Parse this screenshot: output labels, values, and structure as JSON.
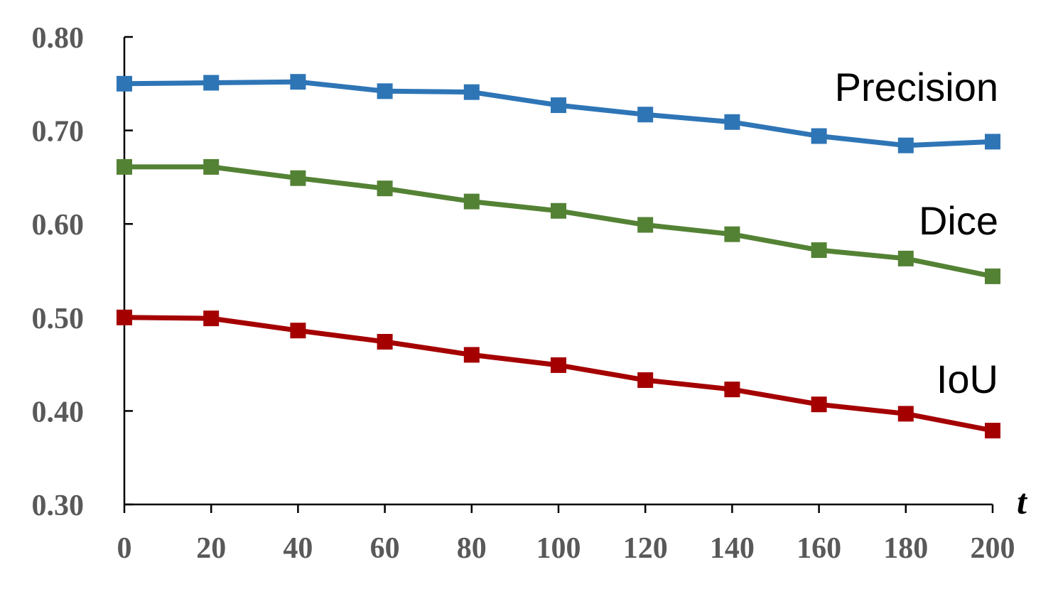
{
  "chart_data": {
    "type": "line",
    "xlabel": "t",
    "ylabel": "",
    "x": [
      0,
      20,
      40,
      60,
      80,
      100,
      120,
      140,
      160,
      180,
      200
    ],
    "x_tick_labels": [
      "0",
      "20",
      "40",
      "60",
      "80",
      "100",
      "120",
      "140",
      "160",
      "180",
      "200"
    ],
    "y_tick_labels": [
      "0.30",
      "0.40",
      "0.50",
      "0.60",
      "0.70",
      "0.80"
    ],
    "ylim": [
      0.3,
      0.8
    ],
    "xlim": [
      0,
      200
    ],
    "grid": false,
    "legend": "inline labels at right end of each series",
    "series": [
      {
        "name": "Precision",
        "color": "#2E75B6",
        "marker": "square",
        "values": [
          0.75,
          0.751,
          0.752,
          0.742,
          0.741,
          0.727,
          0.717,
          0.709,
          0.694,
          0.684,
          0.688
        ]
      },
      {
        "name": "Dice",
        "color": "#548235",
        "marker": "square",
        "values": [
          0.661,
          0.661,
          0.649,
          0.638,
          0.624,
          0.614,
          0.599,
          0.589,
          0.572,
          0.563,
          0.544
        ]
      },
      {
        "name": "IoU",
        "color": "#A50000",
        "marker": "square",
        "values": [
          0.5,
          0.499,
          0.486,
          0.474,
          0.46,
          0.449,
          0.433,
          0.423,
          0.407,
          0.397,
          0.379
        ]
      }
    ]
  }
}
